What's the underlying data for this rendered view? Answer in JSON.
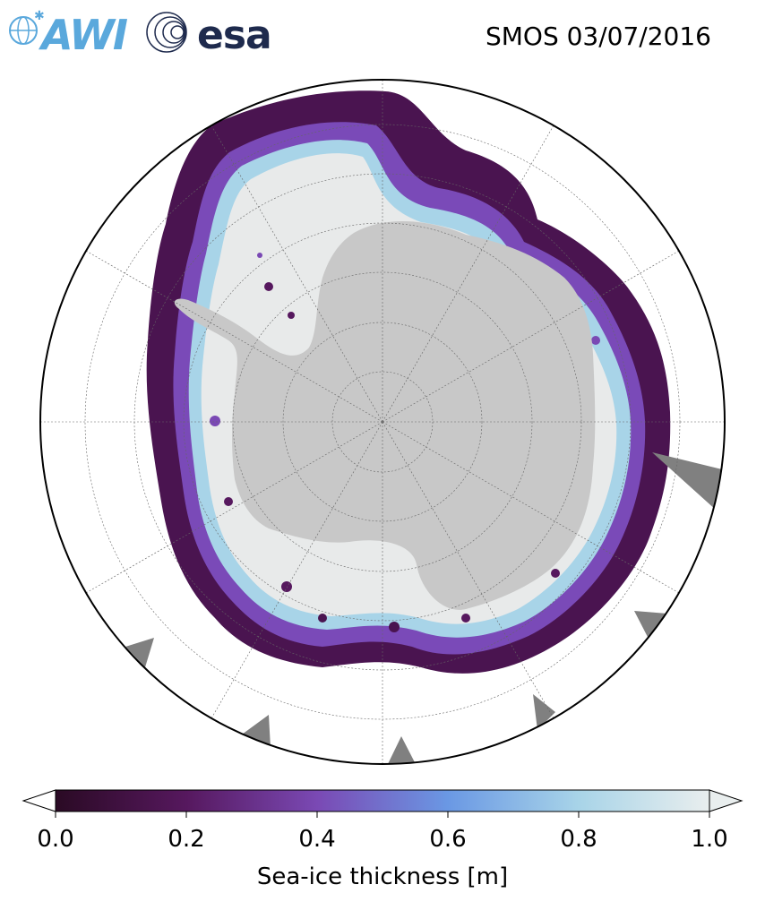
{
  "title": "SMOS 03/07/2016",
  "logos": {
    "awi": {
      "text": "AWI",
      "icon": "awi-globe-logo",
      "color": "#5aa8dc"
    },
    "esa": {
      "text": "esa",
      "icon": "esa-rings-logo",
      "color": "#1e2a4d"
    }
  },
  "map": {
    "projection": "south-polar-stereographic",
    "land_color": "#c8c8c8",
    "ocean_color": "#ffffff",
    "missing_color": "#808080",
    "gridlines": true
  },
  "colorbar": {
    "label": "Sea-ice thickness [m]",
    "ticks": [
      "0.0",
      "0.2",
      "0.4",
      "0.6",
      "0.8",
      "1.0"
    ],
    "range": [
      0.0,
      1.0
    ],
    "colors": [
      "#2a0a24",
      "#56185e",
      "#7a49b4",
      "#6a98e4",
      "#a8d4e8",
      "#e9eeee"
    ],
    "extend": "both"
  }
}
